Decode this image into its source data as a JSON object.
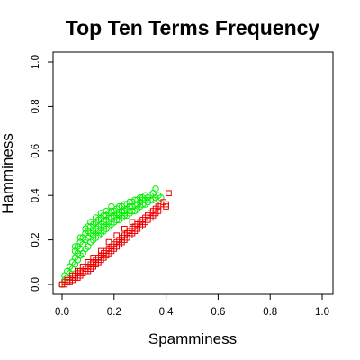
{
  "chart_data": {
    "type": "scatter",
    "title": "Top Ten Terms Frequency",
    "xlabel": "Spamminess",
    "ylabel": "Hamminess",
    "xlim": [
      0,
      1
    ],
    "ylim": [
      0,
      1
    ],
    "xticks": [
      "0.0",
      "0.2",
      "0.4",
      "0.6",
      "0.8",
      "1.0"
    ],
    "yticks": [
      "0.0",
      "0.2",
      "0.4",
      "0.6",
      "0.8",
      "1.0"
    ],
    "grid": false,
    "legend": "none",
    "series": [
      {
        "color": "#00ee00",
        "marker": "circle",
        "points": [
          [
            0.0,
            0.0
          ],
          [
            0.01,
            0.02
          ],
          [
            0.01,
            0.04
          ],
          [
            0.02,
            0.03
          ],
          [
            0.02,
            0.06
          ],
          [
            0.03,
            0.05
          ],
          [
            0.03,
            0.08
          ],
          [
            0.04,
            0.07
          ],
          [
            0.04,
            0.1
          ],
          [
            0.05,
            0.09
          ],
          [
            0.05,
            0.12
          ],
          [
            0.05,
            0.15
          ],
          [
            0.06,
            0.11
          ],
          [
            0.06,
            0.14
          ],
          [
            0.06,
            0.17
          ],
          [
            0.07,
            0.13
          ],
          [
            0.07,
            0.16
          ],
          [
            0.07,
            0.19
          ],
          [
            0.08,
            0.14
          ],
          [
            0.08,
            0.18
          ],
          [
            0.08,
            0.21
          ],
          [
            0.09,
            0.16
          ],
          [
            0.09,
            0.2
          ],
          [
            0.09,
            0.23
          ],
          [
            0.1,
            0.17
          ],
          [
            0.1,
            0.21
          ],
          [
            0.1,
            0.24
          ],
          [
            0.1,
            0.26
          ],
          [
            0.11,
            0.19
          ],
          [
            0.11,
            0.23
          ],
          [
            0.11,
            0.26
          ],
          [
            0.12,
            0.2
          ],
          [
            0.12,
            0.24
          ],
          [
            0.12,
            0.27
          ],
          [
            0.13,
            0.21
          ],
          [
            0.13,
            0.25
          ],
          [
            0.13,
            0.28
          ],
          [
            0.14,
            0.22
          ],
          [
            0.14,
            0.26
          ],
          [
            0.14,
            0.29
          ],
          [
            0.15,
            0.23
          ],
          [
            0.15,
            0.27
          ],
          [
            0.15,
            0.3
          ],
          [
            0.16,
            0.24
          ],
          [
            0.16,
            0.28
          ],
          [
            0.16,
            0.31
          ],
          [
            0.17,
            0.25
          ],
          [
            0.17,
            0.29
          ],
          [
            0.17,
            0.31
          ],
          [
            0.18,
            0.26
          ],
          [
            0.18,
            0.3
          ],
          [
            0.18,
            0.32
          ],
          [
            0.19,
            0.27
          ],
          [
            0.19,
            0.3
          ],
          [
            0.19,
            0.33
          ],
          [
            0.2,
            0.28
          ],
          [
            0.2,
            0.31
          ],
          [
            0.2,
            0.33
          ],
          [
            0.21,
            0.29
          ],
          [
            0.21,
            0.32
          ],
          [
            0.21,
            0.34
          ],
          [
            0.22,
            0.29
          ],
          [
            0.22,
            0.32
          ],
          [
            0.22,
            0.35
          ],
          [
            0.23,
            0.3
          ],
          [
            0.23,
            0.33
          ],
          [
            0.23,
            0.35
          ],
          [
            0.24,
            0.31
          ],
          [
            0.24,
            0.33
          ],
          [
            0.24,
            0.36
          ],
          [
            0.25,
            0.31
          ],
          [
            0.25,
            0.34
          ],
          [
            0.25,
            0.36
          ],
          [
            0.26,
            0.32
          ],
          [
            0.26,
            0.35
          ],
          [
            0.26,
            0.37
          ],
          [
            0.27,
            0.33
          ],
          [
            0.27,
            0.35
          ],
          [
            0.27,
            0.37
          ],
          [
            0.28,
            0.33
          ],
          [
            0.28,
            0.36
          ],
          [
            0.28,
            0.38
          ],
          [
            0.29,
            0.34
          ],
          [
            0.29,
            0.36
          ],
          [
            0.29,
            0.38
          ],
          [
            0.3,
            0.35
          ],
          [
            0.3,
            0.37
          ],
          [
            0.3,
            0.39
          ],
          [
            0.31,
            0.36
          ],
          [
            0.31,
            0.38
          ],
          [
            0.31,
            0.39
          ],
          [
            0.32,
            0.36
          ],
          [
            0.32,
            0.38
          ],
          [
            0.32,
            0.4
          ],
          [
            0.33,
            0.37
          ],
          [
            0.33,
            0.39
          ],
          [
            0.34,
            0.38
          ],
          [
            0.34,
            0.4
          ],
          [
            0.35,
            0.38
          ],
          [
            0.35,
            0.41
          ],
          [
            0.36,
            0.43
          ],
          [
            0.36,
            0.39
          ],
          [
            0.37,
            0.4
          ],
          [
            0.38,
            0.39
          ],
          [
            0.09,
            0.25
          ],
          [
            0.11,
            0.28
          ],
          [
            0.13,
            0.3
          ],
          [
            0.15,
            0.32
          ],
          [
            0.17,
            0.33
          ],
          [
            0.19,
            0.35
          ],
          [
            0.07,
            0.21
          ],
          [
            0.05,
            0.17
          ],
          [
            0.12,
            0.22
          ],
          [
            0.14,
            0.24
          ],
          [
            0.16,
            0.26
          ],
          [
            0.18,
            0.28
          ],
          [
            0.2,
            0.3
          ],
          [
            0.22,
            0.31
          ],
          [
            0.24,
            0.32
          ],
          [
            0.26,
            0.33
          ]
        ]
      },
      {
        "color": "#ee0000",
        "marker": "square",
        "points": [
          [
            0.0,
            0.0
          ],
          [
            0.01,
            0.0
          ],
          [
            0.01,
            0.01
          ],
          [
            0.02,
            0.01
          ],
          [
            0.02,
            0.02
          ],
          [
            0.03,
            0.01
          ],
          [
            0.03,
            0.02
          ],
          [
            0.04,
            0.02
          ],
          [
            0.04,
            0.03
          ],
          [
            0.05,
            0.03
          ],
          [
            0.05,
            0.04
          ],
          [
            0.06,
            0.03
          ],
          [
            0.06,
            0.05
          ],
          [
            0.07,
            0.04
          ],
          [
            0.07,
            0.06
          ],
          [
            0.08,
            0.05
          ],
          [
            0.08,
            0.06
          ],
          [
            0.09,
            0.06
          ],
          [
            0.09,
            0.07
          ],
          [
            0.1,
            0.06
          ],
          [
            0.1,
            0.08
          ],
          [
            0.11,
            0.07
          ],
          [
            0.11,
            0.09
          ],
          [
            0.12,
            0.08
          ],
          [
            0.12,
            0.1
          ],
          [
            0.13,
            0.09
          ],
          [
            0.13,
            0.11
          ],
          [
            0.14,
            0.1
          ],
          [
            0.14,
            0.12
          ],
          [
            0.15,
            0.11
          ],
          [
            0.15,
            0.13
          ],
          [
            0.16,
            0.12
          ],
          [
            0.16,
            0.14
          ],
          [
            0.17,
            0.13
          ],
          [
            0.17,
            0.15
          ],
          [
            0.18,
            0.14
          ],
          [
            0.18,
            0.16
          ],
          [
            0.19,
            0.15
          ],
          [
            0.19,
            0.17
          ],
          [
            0.2,
            0.16
          ],
          [
            0.2,
            0.18
          ],
          [
            0.21,
            0.17
          ],
          [
            0.21,
            0.19
          ],
          [
            0.22,
            0.18
          ],
          [
            0.22,
            0.2
          ],
          [
            0.23,
            0.19
          ],
          [
            0.23,
            0.21
          ],
          [
            0.24,
            0.2
          ],
          [
            0.24,
            0.22
          ],
          [
            0.25,
            0.21
          ],
          [
            0.25,
            0.23
          ],
          [
            0.26,
            0.22
          ],
          [
            0.26,
            0.24
          ],
          [
            0.27,
            0.23
          ],
          [
            0.27,
            0.25
          ],
          [
            0.28,
            0.24
          ],
          [
            0.28,
            0.26
          ],
          [
            0.29,
            0.25
          ],
          [
            0.29,
            0.27
          ],
          [
            0.3,
            0.26
          ],
          [
            0.3,
            0.28
          ],
          [
            0.31,
            0.27
          ],
          [
            0.31,
            0.29
          ],
          [
            0.32,
            0.28
          ],
          [
            0.32,
            0.3
          ],
          [
            0.33,
            0.29
          ],
          [
            0.33,
            0.31
          ],
          [
            0.34,
            0.3
          ],
          [
            0.34,
            0.32
          ],
          [
            0.35,
            0.31
          ],
          [
            0.35,
            0.33
          ],
          [
            0.36,
            0.32
          ],
          [
            0.36,
            0.34
          ],
          [
            0.37,
            0.33
          ],
          [
            0.37,
            0.35
          ],
          [
            0.38,
            0.36
          ],
          [
            0.4,
            0.36
          ],
          [
            0.4,
            0.35
          ],
          [
            0.41,
            0.41
          ],
          [
            0.39,
            0.37
          ],
          [
            0.15,
            0.15
          ],
          [
            0.18,
            0.19
          ],
          [
            0.21,
            0.22
          ],
          [
            0.24,
            0.25
          ],
          [
            0.27,
            0.28
          ],
          [
            0.1,
            0.1
          ],
          [
            0.12,
            0.12
          ],
          [
            0.08,
            0.08
          ],
          [
            0.06,
            0.06
          ],
          [
            0.04,
            0.04
          ]
        ]
      }
    ]
  }
}
